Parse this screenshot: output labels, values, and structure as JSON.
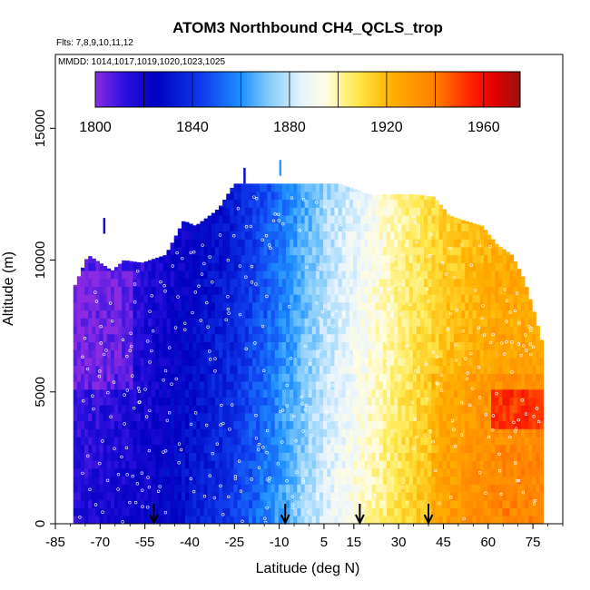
{
  "chart_data": {
    "type": "heatmap",
    "title": "ATOM3 Northbound CH4_QCLS_trop",
    "flights_label": "Flts: 7,8,9,10,11,12",
    "dates_label": "MMDD: 1014,1017,1019,1020,1023,1025",
    "xlabel": "Latitude (deg N)",
    "ylabel": "Altitude (m)",
    "xlim": [
      -85,
      85
    ],
    "ylim": [
      0,
      17800
    ],
    "x_ticks": [
      -85,
      -70,
      -55,
      -40,
      -25,
      -10,
      5,
      15,
      30,
      45,
      60,
      75
    ],
    "y_ticks": [
      0,
      5000,
      10000,
      15000
    ],
    "colorbar": {
      "range": [
        1800,
        1975
      ],
      "ticks": [
        1800,
        1840,
        1880,
        1920,
        1960
      ],
      "stops": [
        {
          "value": 1800,
          "color": "#8a2be2"
        },
        {
          "value": 1812,
          "color": "#2b10e0"
        },
        {
          "value": 1825,
          "color": "#0000c0"
        },
        {
          "value": 1845,
          "color": "#1040f0"
        },
        {
          "value": 1860,
          "color": "#1e90ff"
        },
        {
          "value": 1872,
          "color": "#87cefa"
        },
        {
          "value": 1885,
          "color": "#e8f4ff"
        },
        {
          "value": 1895,
          "color": "#fffde0"
        },
        {
          "value": 1908,
          "color": "#ffe84a"
        },
        {
          "value": 1922,
          "color": "#ffb000"
        },
        {
          "value": 1940,
          "color": "#ff8000"
        },
        {
          "value": 1955,
          "color": "#ff2000"
        },
        {
          "value": 1965,
          "color": "#e00000"
        },
        {
          "value": 1975,
          "color": "#9b1010"
        }
      ]
    },
    "ch4_gradient_by_latitude": {
      "latitude": [
        -78,
        -65,
        -55,
        -40,
        -25,
        -15,
        -5,
        5,
        15,
        25,
        35,
        45,
        55,
        65,
        78
      ],
      "ch4_ppb": [
        1815,
        1818,
        1822,
        1832,
        1843,
        1856,
        1870,
        1884,
        1894,
        1904,
        1914,
        1922,
        1928,
        1932,
        1932
      ]
    },
    "profile_arrows_latitude": [
      -52,
      -8,
      17,
      40
    ]
  }
}
